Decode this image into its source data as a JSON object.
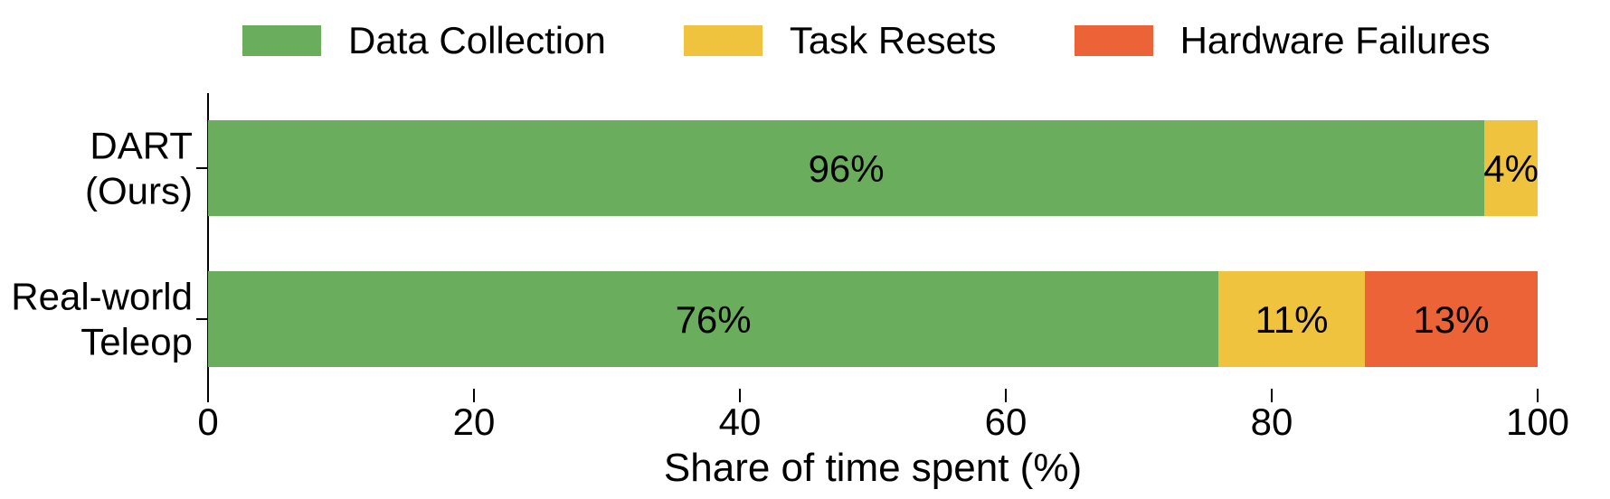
{
  "figure": {
    "background": "#ffffff",
    "text_color": "#000000",
    "axis_color": "#000000"
  },
  "chart_data": {
    "type": "bar",
    "orientation": "horizontal",
    "stacked": true,
    "title": "",
    "xlabel": "Share of time spent (%)",
    "ylabel": "",
    "xlim": [
      0,
      100
    ],
    "grid": false,
    "legend_position": "top",
    "x_tick_labels": [
      "0",
      "20",
      "40",
      "60",
      "80",
      "100"
    ],
    "x_tick_values": [
      0,
      20,
      40,
      60,
      80,
      100
    ],
    "categories": [
      {
        "label": "DART (Ours)",
        "lines": [
          "DART",
          "(Ours)"
        ]
      },
      {
        "label": "Real-world Teleop",
        "lines": [
          "Real-world",
          "Teleop"
        ]
      }
    ],
    "series": [
      {
        "name": "Data Collection",
        "color": "#6aad5c",
        "values": [
          96,
          76
        ],
        "labels": [
          "96%",
          "76%"
        ]
      },
      {
        "name": "Task Resets",
        "color": "#f0c33e",
        "values": [
          4,
          11
        ],
        "labels": [
          "4%",
          "11%"
        ]
      },
      {
        "name": "Hardware Failures",
        "color": "#eb6337",
        "values": [
          0,
          13
        ],
        "labels": [
          "",
          "13%"
        ]
      }
    ]
  }
}
